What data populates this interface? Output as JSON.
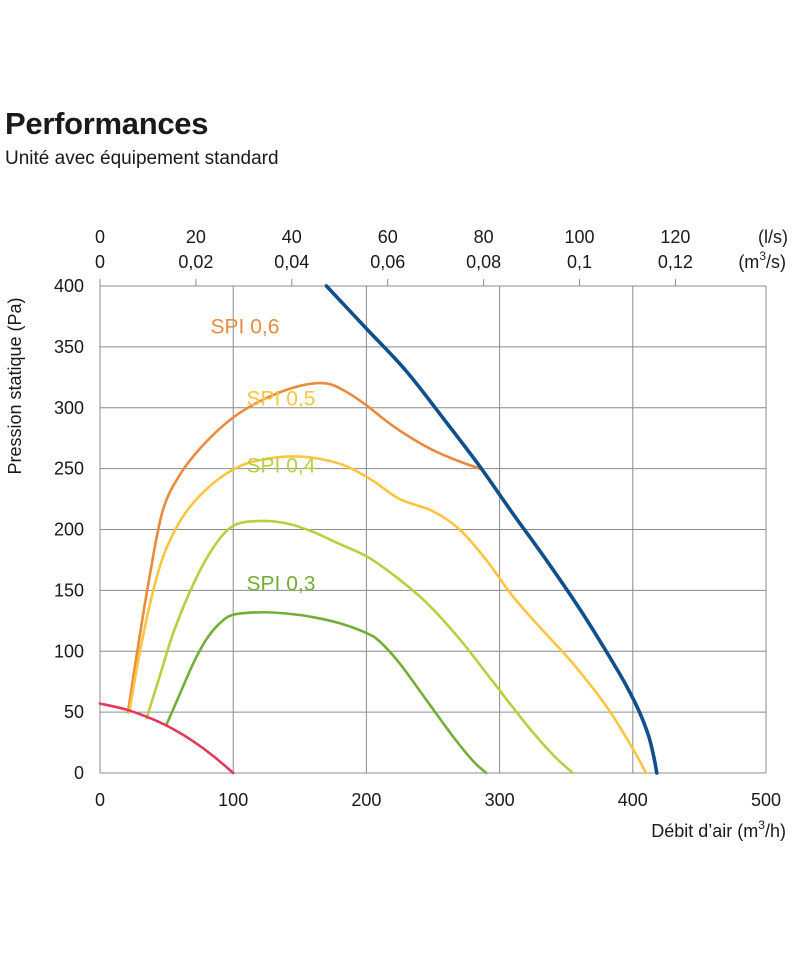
{
  "header": {
    "title": "Performances",
    "subtitle": "Unité avec équipement standard"
  },
  "chart_data": {
    "type": "line",
    "title": "Performances",
    "subtitle": "Unité avec équipement standard",
    "xlabel": "Débit d’air (m",
    "xlabel_sup": "3",
    "xlabel_end": "/h)",
    "ylabel": "Pression statique  (Pa)",
    "xlim": [
      0,
      500
    ],
    "ylim": [
      0,
      400
    ],
    "x_ticks": [
      0,
      100,
      200,
      300,
      400,
      500
    ],
    "y_ticks": [
      0,
      50,
      100,
      150,
      200,
      250,
      300,
      350,
      400
    ],
    "grid": true,
    "top_axis": {
      "ls_ticks": [
        "0",
        "20",
        "40",
        "60",
        "80",
        "100",
        "120"
      ],
      "ls_values": [
        0,
        20,
        40,
        60,
        80,
        100,
        120
      ],
      "ls_unit": "(l/s)",
      "m3s_ticks": [
        "0",
        "0,02",
        "0,04",
        "0,06",
        "0,08",
        "0,1",
        "0,12"
      ],
      "m3s_unit_pre": "(m",
      "m3s_unit_sup": "3",
      "m3s_unit_post": "/s)"
    },
    "series": [
      {
        "name": "SPI 0,6",
        "color": "#e98a3c",
        "x": [
          21,
          28,
          37,
          47,
          60,
          78,
          100,
          125,
          150,
          170,
          185,
          200,
          220,
          245,
          265,
          285
        ],
        "y": [
          50,
          100,
          160,
          215,
          245,
          270,
          292,
          308,
          318,
          320,
          313,
          302,
          285,
          268,
          258,
          250
        ]
      },
      {
        "name": "SPI 0,5",
        "color": "#fcc43f",
        "x": [
          22,
          30,
          40,
          50,
          65,
          85,
          105,
          125,
          145,
          165,
          185,
          205,
          225,
          250,
          270,
          290,
          310,
          330,
          355,
          380,
          400,
          410
        ],
        "y": [
          50,
          100,
          150,
          185,
          215,
          238,
          252,
          258,
          260,
          258,
          252,
          240,
          225,
          215,
          200,
          175,
          145,
          120,
          90,
          55,
          20,
          0
        ]
      },
      {
        "name": "SPI 0,4",
        "color": "#b7cf40",
        "x": [
          35,
          45,
          55,
          70,
          85,
          100,
          120,
          140,
          160,
          180,
          200,
          220,
          245,
          270,
          295,
          320,
          340,
          355
        ],
        "y": [
          45,
          80,
          115,
          155,
          185,
          203,
          207,
          205,
          198,
          188,
          178,
          163,
          140,
          110,
          75,
          40,
          15,
          0
        ]
      },
      {
        "name": "SPI 0,3",
        "color": "#74ad38",
        "x": [
          50,
          60,
          70,
          80,
          90,
          100,
          120,
          140,
          160,
          180,
          200,
          210,
          225,
          245,
          265,
          280,
          290
        ],
        "y": [
          40,
          65,
          90,
          110,
          123,
          130,
          132,
          131,
          128,
          123,
          115,
          108,
          90,
          60,
          30,
          10,
          0
        ]
      },
      {
        "name": "",
        "color": "#e23958",
        "x": [
          0,
          20,
          40,
          55,
          70,
          85,
          100
        ],
        "y": [
          57,
          52,
          44,
          36,
          26,
          14,
          0
        ]
      },
      {
        "name": "",
        "color": "#0f4f8c",
        "x": [
          170,
          200,
          230,
          260,
          285,
          310,
          335,
          360,
          380,
          395,
          405,
          412,
          416,
          418
        ],
        "y": [
          400,
          365,
          330,
          288,
          252,
          213,
          175,
          135,
          100,
          72,
          50,
          30,
          12,
          0
        ]
      }
    ]
  }
}
